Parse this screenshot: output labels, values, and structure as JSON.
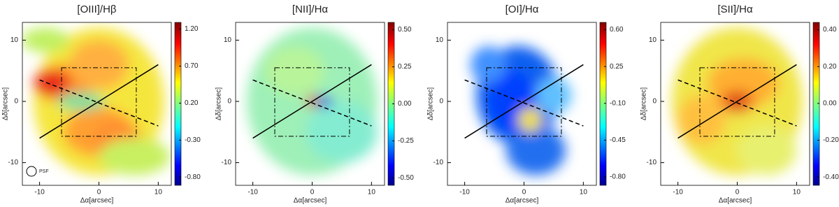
{
  "chart_data": [
    {
      "type": "heatmap",
      "title": "[OIII]/Hβ",
      "xlabel": "Δα[arcsec]",
      "ylabel": "Δδ[arcsec]",
      "xlim": [
        -12.9,
        12.2
      ],
      "ylim": [
        -13.7,
        12.9
      ],
      "xticks": [
        -10,
        0,
        10
      ],
      "yticks": [
        -10,
        0,
        10
      ],
      "clim": [
        -0.91,
        1.29
      ],
      "cticks": [
        {
          "value": 1.2,
          "label": "1.20"
        },
        {
          "value": 0.7,
          "label": "0.70"
        },
        {
          "value": 0.2,
          "label": "0.20"
        },
        {
          "value": -0.3,
          "label": "-0.30"
        },
        {
          "value": -0.8,
          "label": "-0.80"
        }
      ],
      "annotation": "PSF"
    },
    {
      "type": "heatmap",
      "title": "[NII]/Hα",
      "xlabel": "Δα[arcsec]",
      "ylabel": "Δδ[arcsec]",
      "xlim": [
        -12.9,
        12.2
      ],
      "ylim": [
        -13.7,
        12.9
      ],
      "xticks": [
        -10,
        0,
        10
      ],
      "yticks": [
        -10,
        0,
        10
      ],
      "clim": [
        -0.55,
        0.55
      ],
      "cticks": [
        {
          "value": 0.5,
          "label": "0.50"
        },
        {
          "value": 0.25,
          "label": "0.25"
        },
        {
          "value": 0,
          "label": "0.00"
        },
        {
          "value": -0.25,
          "label": "-0.25"
        },
        {
          "value": -0.5,
          "label": "-0.50"
        }
      ]
    },
    {
      "type": "heatmap",
      "title": "[OI]/Hα",
      "xlabel": "Δα[arcsec]",
      "ylabel": "Δδ[arcsec]",
      "xlim": [
        -12.9,
        12.2
      ],
      "ylim": [
        -13.7,
        12.9
      ],
      "xticks": [
        -10,
        0,
        10
      ],
      "yticks": [
        -10,
        0,
        10
      ],
      "clim": [
        -0.88,
        0.67
      ],
      "cticks": [
        {
          "value": 0.6,
          "label": "0.60"
        },
        {
          "value": 0.25,
          "label": "0.25"
        },
        {
          "value": -0.1,
          "label": "-0.10"
        },
        {
          "value": -0.45,
          "label": "-0.45"
        },
        {
          "value": -0.8,
          "label": "-0.80"
        }
      ]
    },
    {
      "type": "heatmap",
      "title": "[SII]/Hα",
      "xlabel": "Δα[arcsec]",
      "ylabel": "Δδ[arcsec]",
      "xlim": [
        -12.9,
        12.2
      ],
      "ylim": [
        -13.7,
        12.9
      ],
      "xticks": [
        -10,
        0,
        10
      ],
      "yticks": [
        -10,
        0,
        10
      ],
      "clim": [
        -0.445,
        0.44
      ],
      "cticks": [
        {
          "value": 0.4,
          "label": "0.40"
        },
        {
          "value": 0.2,
          "label": "0.20"
        },
        {
          "value": 0,
          "label": "0.00"
        },
        {
          "value": -0.2,
          "label": "-0.20"
        },
        {
          "value": -0.4,
          "label": "-0.40"
        }
      ]
    }
  ]
}
